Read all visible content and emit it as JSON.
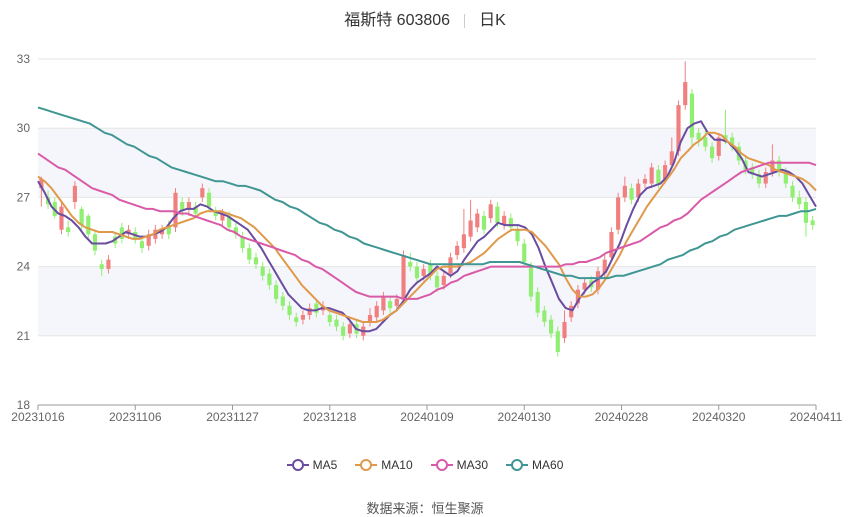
{
  "header": {
    "stock_name": "福斯特 603806",
    "period": "日K"
  },
  "source": {
    "label": "数据来源：",
    "provider": "恒生聚源"
  },
  "colors": {
    "up": "#f08080",
    "down": "#90ee70",
    "ma5": "#6a4ca0",
    "ma10": "#e0994a",
    "ma30": "#d95ba8",
    "ma60": "#3f9693",
    "band": "#f5f6fb"
  },
  "chart_data": {
    "type": "candlestick",
    "title": "福斯特 603806 日K",
    "x_tick_labels": [
      "20231016",
      "20231106",
      "20231127",
      "20231218",
      "20240109",
      "20240130",
      "20240228",
      "20240320",
      "20240411"
    ],
    "y_ticks": [
      18,
      21,
      24,
      27,
      30,
      33
    ],
    "ylim": [
      18,
      33
    ],
    "grid": true,
    "legend_position": "bottom",
    "series": [
      {
        "name": "MA5",
        "color": "#6a4ca0",
        "values": [
          27.7,
          27.2,
          26.6,
          26.3,
          26.2,
          26.0,
          25.7,
          25.3,
          25.0,
          25.0,
          25.0,
          25.1,
          25.3,
          25.5,
          25.4,
          25.3,
          25.3,
          25.4,
          25.5,
          25.7,
          26.1,
          26.4,
          26.5,
          26.5,
          26.7,
          26.6,
          26.4,
          26.3,
          26.2,
          26.0,
          25.8,
          25.6,
          25.2,
          24.8,
          24.3,
          23.8,
          23.3,
          22.8,
          22.5,
          22.2,
          22.1,
          22.1,
          22.2,
          22.2,
          22.1,
          22.0,
          21.7,
          21.3,
          21.2,
          21.2,
          21.3,
          21.6,
          21.9,
          22.1,
          22.5,
          23.0,
          23.3,
          23.5,
          23.7,
          24.0,
          23.8,
          23.6,
          23.8,
          24.3,
          24.7,
          25.1,
          25.3,
          25.6,
          25.9,
          25.8,
          25.8,
          25.8,
          25.7,
          25.4,
          24.8,
          24.0,
          23.3,
          22.6,
          22.2,
          22.1,
          22.6,
          23.0,
          23.3,
          23.5,
          23.8,
          24.4,
          25.0,
          25.8,
          26.5,
          27.1,
          27.4,
          27.5,
          27.6,
          27.9,
          28.5,
          29.4,
          30.0,
          30.2,
          30.3,
          29.8,
          29.5,
          29.5,
          29.4,
          29.1,
          28.7,
          28.1,
          28.0,
          27.9,
          28.0,
          28.1,
          28.2,
          28.1,
          27.9,
          27.6,
          27.1,
          26.6
        ]
      },
      {
        "name": "MA10",
        "color": "#e0994a",
        "values": [
          27.9,
          27.7,
          27.4,
          27.0,
          26.6,
          26.2,
          25.9,
          25.7,
          25.6,
          25.5,
          25.5,
          25.5,
          25.4,
          25.3,
          25.2,
          25.2,
          25.3,
          25.4,
          25.6,
          25.7,
          25.8,
          25.9,
          26.0,
          26.1,
          26.3,
          26.4,
          26.4,
          26.4,
          26.3,
          26.2,
          26.1,
          25.9,
          25.7,
          25.4,
          25.1,
          24.8,
          24.4,
          24.0,
          23.6,
          23.2,
          22.9,
          22.6,
          22.3,
          22.1,
          22.0,
          21.9,
          21.8,
          21.7,
          21.6,
          21.6,
          21.6,
          21.7,
          21.9,
          22.1,
          22.4,
          22.7,
          23.0,
          23.3,
          23.6,
          23.9,
          24.0,
          24.0,
          24.0,
          24.1,
          24.2,
          24.4,
          24.6,
          24.9,
          25.2,
          25.4,
          25.6,
          25.6,
          25.6,
          25.5,
          25.2,
          24.9,
          24.5,
          24.1,
          23.5,
          23.0,
          22.7,
          22.7,
          22.8,
          23.1,
          23.5,
          24.0,
          24.5,
          25.1,
          25.6,
          26.1,
          26.6,
          27.0,
          27.4,
          27.8,
          28.2,
          28.7,
          29.0,
          29.3,
          29.5,
          29.8,
          29.8,
          29.7,
          29.4,
          29.2,
          28.9,
          28.7,
          28.6,
          28.5,
          28.4,
          28.2,
          28.1,
          28.0,
          27.9,
          27.8,
          27.6,
          27.3
        ]
      },
      {
        "name": "MA30",
        "color": "#d95ba8",
        "values": [
          28.9,
          28.7,
          28.5,
          28.3,
          28.2,
          28.0,
          27.8,
          27.6,
          27.4,
          27.3,
          27.2,
          27.1,
          26.9,
          26.8,
          26.7,
          26.6,
          26.5,
          26.5,
          26.4,
          26.4,
          26.4,
          26.3,
          26.3,
          26.2,
          26.1,
          26.0,
          25.9,
          25.8,
          25.6,
          25.5,
          25.3,
          25.2,
          25.1,
          25.0,
          24.9,
          24.8,
          24.7,
          24.6,
          24.5,
          24.3,
          24.2,
          24.0,
          23.9,
          23.7,
          23.5,
          23.3,
          23.1,
          22.9,
          22.8,
          22.7,
          22.7,
          22.7,
          22.7,
          22.7,
          22.6,
          22.6,
          22.6,
          22.7,
          22.8,
          23.0,
          23.1,
          23.3,
          23.4,
          23.6,
          23.7,
          23.8,
          23.9,
          24.0,
          24.0,
          24.0,
          24.0,
          24.0,
          24.0,
          24.0,
          24.0,
          24.0,
          24.0,
          24.0,
          24.1,
          24.1,
          24.2,
          24.2,
          24.3,
          24.4,
          24.6,
          24.7,
          24.8,
          24.9,
          25.0,
          25.1,
          25.3,
          25.5,
          25.7,
          25.8,
          26.0,
          26.1,
          26.3,
          26.6,
          26.9,
          27.1,
          27.3,
          27.5,
          27.7,
          27.9,
          28.1,
          28.2,
          28.3,
          28.4,
          28.5,
          28.5,
          28.5,
          28.5,
          28.5,
          28.5,
          28.5,
          28.4
        ]
      },
      {
        "name": "MA60",
        "color": "#3f9693",
        "values": [
          30.9,
          30.8,
          30.7,
          30.6,
          30.5,
          30.4,
          30.3,
          30.2,
          30.0,
          29.8,
          29.7,
          29.5,
          29.3,
          29.2,
          29.0,
          28.8,
          28.7,
          28.5,
          28.3,
          28.2,
          28.1,
          28.0,
          27.9,
          27.8,
          27.7,
          27.7,
          27.6,
          27.5,
          27.5,
          27.4,
          27.3,
          27.1,
          26.9,
          26.8,
          26.6,
          26.5,
          26.3,
          26.1,
          25.9,
          25.8,
          25.6,
          25.5,
          25.3,
          25.2,
          25.0,
          24.9,
          24.8,
          24.7,
          24.6,
          24.5,
          24.4,
          24.3,
          24.2,
          24.1,
          24.1,
          24.1,
          24.1,
          24.1,
          24.1,
          24.1,
          24.1,
          24.2,
          24.2,
          24.2,
          24.2,
          24.2,
          24.1,
          24.0,
          23.9,
          23.8,
          23.7,
          23.6,
          23.6,
          23.5,
          23.5,
          23.5,
          23.5,
          23.5,
          23.6,
          23.6,
          23.7,
          23.8,
          23.9,
          24.0,
          24.1,
          24.3,
          24.4,
          24.5,
          24.7,
          24.8,
          25.0,
          25.1,
          25.3,
          25.4,
          25.6,
          25.7,
          25.8,
          25.9,
          26.0,
          26.1,
          26.2,
          26.2,
          26.3,
          26.4,
          26.4,
          26.5
        ]
      }
    ],
    "candles": [
      [
        27.4,
        27.8,
        26.6,
        27.9
      ],
      [
        27.0,
        26.7,
        26.5,
        27.3
      ],
      [
        26.8,
        26.2,
        26.1,
        27.0
      ],
      [
        25.6,
        26.6,
        25.4,
        26.8
      ],
      [
        25.7,
        25.5,
        25.3,
        26.0
      ],
      [
        26.8,
        27.5,
        26.5,
        27.7
      ],
      [
        26.5,
        25.8,
        25.6,
        26.6
      ],
      [
        26.2,
        25.4,
        25.2,
        26.3
      ],
      [
        25.4,
        24.7,
        24.5,
        25.6
      ],
      [
        24.1,
        23.9,
        23.6,
        24.3
      ],
      [
        23.9,
        24.3,
        23.7,
        24.5
      ],
      [
        25.3,
        25.0,
        24.8,
        25.5
      ],
      [
        25.7,
        25.2,
        25.0,
        25.9
      ],
      [
        25.4,
        25.6,
        25.2,
        25.8
      ],
      [
        25.5,
        25.2,
        25.0,
        25.7
      ],
      [
        25.1,
        24.8,
        24.6,
        25.3
      ],
      [
        24.9,
        25.4,
        24.7,
        25.6
      ],
      [
        25.2,
        25.6,
        25.0,
        25.8
      ],
      [
        25.4,
        25.6,
        25.2,
        25.8
      ],
      [
        25.8,
        25.4,
        25.2,
        26.0
      ],
      [
        25.7,
        27.2,
        25.5,
        27.4
      ],
      [
        26.8,
        26.4,
        26.2,
        27.0
      ],
      [
        26.5,
        26.8,
        26.2,
        27.0
      ],
      [
        26.6,
        26.3,
        26.1,
        26.8
      ],
      [
        27.0,
        27.4,
        26.8,
        27.6
      ],
      [
        27.2,
        26.6,
        26.4,
        27.4
      ],
      [
        26.4,
        26.2,
        26.0,
        26.6
      ],
      [
        26.0,
        26.3,
        25.8,
        26.5
      ],
      [
        26.2,
        25.7,
        25.5,
        26.4
      ],
      [
        25.7,
        25.4,
        25.2,
        25.9
      ],
      [
        25.3,
        24.8,
        24.6,
        25.5
      ],
      [
        24.8,
        24.3,
        24.1,
        25.0
      ],
      [
        24.4,
        24.1,
        23.9,
        24.6
      ],
      [
        24.0,
        23.6,
        23.4,
        24.2
      ],
      [
        23.7,
        23.2,
        23.0,
        23.9
      ],
      [
        23.2,
        22.6,
        22.4,
        23.4
      ],
      [
        22.7,
        22.3,
        22.1,
        22.9
      ],
      [
        22.3,
        21.9,
        21.7,
        22.5
      ],
      [
        21.8,
        21.6,
        21.4,
        22.0
      ],
      [
        21.7,
        21.9,
        21.5,
        22.1
      ],
      [
        21.9,
        22.2,
        21.7,
        22.4
      ],
      [
        22.4,
        22.0,
        21.8,
        22.6
      ],
      [
        22.1,
        22.3,
        21.9,
        22.5
      ],
      [
        21.9,
        21.6,
        21.4,
        22.1
      ],
      [
        21.7,
        21.4,
        21.2,
        21.9
      ],
      [
        21.4,
        21.0,
        20.8,
        21.6
      ],
      [
        21.1,
        21.5,
        20.9,
        21.7
      ],
      [
        21.5,
        21.1,
        20.9,
        21.7
      ],
      [
        21.0,
        21.4,
        20.8,
        21.6
      ],
      [
        21.6,
        21.9,
        21.4,
        22.2
      ],
      [
        21.8,
        22.3,
        21.6,
        22.5
      ],
      [
        22.1,
        22.7,
        21.9,
        22.9
      ],
      [
        22.5,
        22.2,
        22.0,
        22.7
      ],
      [
        22.3,
        22.6,
        22.1,
        22.8
      ],
      [
        22.6,
        24.5,
        22.4,
        24.7
      ],
      [
        24.2,
        24.0,
        23.8,
        24.6
      ],
      [
        24.0,
        23.5,
        23.3,
        24.2
      ],
      [
        23.6,
        23.9,
        23.4,
        24.1
      ],
      [
        24.1,
        23.6,
        23.4,
        24.3
      ],
      [
        23.6,
        23.1,
        22.9,
        23.8
      ],
      [
        23.2,
        23.6,
        23.0,
        23.8
      ],
      [
        23.7,
        24.4,
        23.5,
        24.6
      ],
      [
        24.5,
        24.9,
        24.3,
        25.1
      ],
      [
        24.8,
        25.4,
        24.6,
        26.5
      ],
      [
        25.3,
        26.0,
        25.1,
        26.9
      ],
      [
        25.7,
        26.3,
        25.5,
        26.5
      ],
      [
        26.2,
        25.6,
        25.4,
        26.4
      ],
      [
        26.1,
        26.7,
        25.9,
        26.9
      ],
      [
        26.6,
        25.9,
        25.7,
        26.8
      ],
      [
        25.8,
        26.2,
        25.6,
        26.4
      ],
      [
        26.1,
        25.7,
        25.5,
        26.3
      ],
      [
        25.6,
        25.1,
        24.9,
        25.8
      ],
      [
        25.0,
        24.2,
        24.0,
        25.2
      ],
      [
        24.0,
        22.7,
        22.5,
        24.2
      ],
      [
        22.9,
        22.0,
        21.8,
        23.1
      ],
      [
        22.1,
        21.6,
        21.4,
        22.3
      ],
      [
        21.7,
        21.1,
        20.9,
        21.9
      ],
      [
        21.2,
        20.3,
        20.1,
        21.4
      ],
      [
        20.9,
        21.6,
        20.7,
        22.1
      ],
      [
        21.8,
        22.3,
        21.6,
        22.5
      ],
      [
        22.4,
        23.0,
        22.2,
        23.2
      ],
      [
        23.0,
        23.3,
        22.8,
        23.5
      ],
      [
        23.4,
        23.1,
        22.9,
        23.6
      ],
      [
        23.0,
        23.8,
        22.8,
        24.0
      ],
      [
        23.7,
        24.3,
        23.5,
        24.5
      ],
      [
        24.4,
        25.5,
        24.2,
        25.7
      ],
      [
        25.6,
        27.0,
        25.4,
        27.2
      ],
      [
        27.0,
        27.5,
        26.8,
        27.9
      ],
      [
        27.4,
        26.9,
        26.7,
        27.6
      ],
      [
        27.0,
        27.6,
        26.8,
        27.8
      ],
      [
        27.6,
        27.8,
        27.4,
        28.0
      ],
      [
        27.6,
        28.3,
        27.4,
        28.5
      ],
      [
        28.2,
        27.6,
        27.4,
        28.4
      ],
      [
        27.8,
        28.4,
        27.6,
        28.6
      ],
      [
        28.4,
        29.0,
        28.2,
        29.6
      ],
      [
        29.0,
        31.0,
        28.8,
        31.2
      ],
      [
        31.0,
        32.0,
        30.8,
        32.9
      ],
      [
        31.5,
        29.6,
        29.2,
        31.7
      ],
      [
        29.8,
        29.5,
        29.2,
        30.0
      ],
      [
        29.6,
        29.2,
        29.0,
        29.9
      ],
      [
        29.2,
        28.7,
        28.5,
        29.4
      ],
      [
        28.8,
        29.6,
        28.6,
        29.8
      ],
      [
        29.7,
        29.5,
        29.3,
        30.8
      ],
      [
        29.6,
        29.2,
        29.0,
        29.8
      ],
      [
        29.2,
        28.6,
        28.4,
        29.4
      ],
      [
        28.6,
        28.2,
        28.0,
        28.8
      ],
      [
        28.3,
        28.0,
        27.8,
        28.5
      ],
      [
        28.0,
        27.6,
        27.4,
        28.2
      ],
      [
        27.6,
        28.1,
        27.4,
        28.3
      ],
      [
        28.1,
        28.6,
        27.9,
        29.3
      ],
      [
        28.6,
        28.1,
        27.9,
        28.8
      ],
      [
        28.1,
        27.6,
        27.4,
        28.3
      ],
      [
        27.5,
        27.0,
        26.8,
        27.7
      ],
      [
        27.0,
        26.7,
        26.5,
        27.3
      ],
      [
        26.8,
        25.9,
        25.3,
        27.0
      ],
      [
        26.0,
        25.8,
        25.6,
        26.2
      ]
    ]
  }
}
